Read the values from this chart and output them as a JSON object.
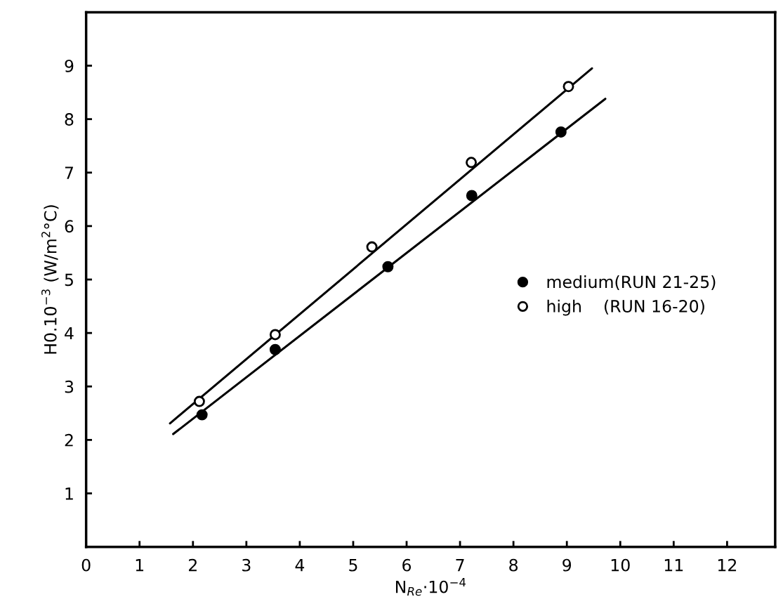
{
  "chart_data": {
    "type": "scatter",
    "xlabel": "N$_{Re}$·10$^{−4}$",
    "ylabel": "H0.10$^{−3}$ (W/m$^{2}$°C)",
    "xlim": [
      0,
      12.9
    ],
    "ylim": [
      0,
      10
    ],
    "xticks": [
      0,
      1,
      2,
      3,
      4,
      5,
      6,
      7,
      8,
      9,
      10,
      11,
      12
    ],
    "yticks": [
      1,
      2,
      3,
      4,
      5,
      6,
      7,
      8,
      9
    ],
    "grid": false,
    "legend": "right",
    "series": [
      {
        "name": "medium(RUN 21-25)",
        "color": "#000000",
        "marker": "circle",
        "x": [
          2.17,
          3.54,
          5.65,
          7.22,
          8.89
        ],
        "values": [
          2.47,
          3.69,
          5.24,
          6.57,
          7.76
        ]
      },
      {
        "name": "high    (RUN 16-20)",
        "color": "#ffffff",
        "marker": "circle",
        "x": [
          2.12,
          3.54,
          5.35,
          7.21,
          9.03
        ],
        "values": [
          2.72,
          3.97,
          5.61,
          7.19,
          8.61
        ]
      },
      {
        "type": "line",
        "color": "#000000",
        "marker": "none",
        "line_style": "solid",
        "x": [
          1.63,
          9.72
        ],
        "values": [
          2.11,
          8.38
        ]
      },
      {
        "type": "line",
        "color": "#000000",
        "marker": "none",
        "line_style": "solid",
        "x": [
          1.57,
          9.47
        ],
        "values": [
          2.31,
          8.95
        ]
      }
    ]
  }
}
